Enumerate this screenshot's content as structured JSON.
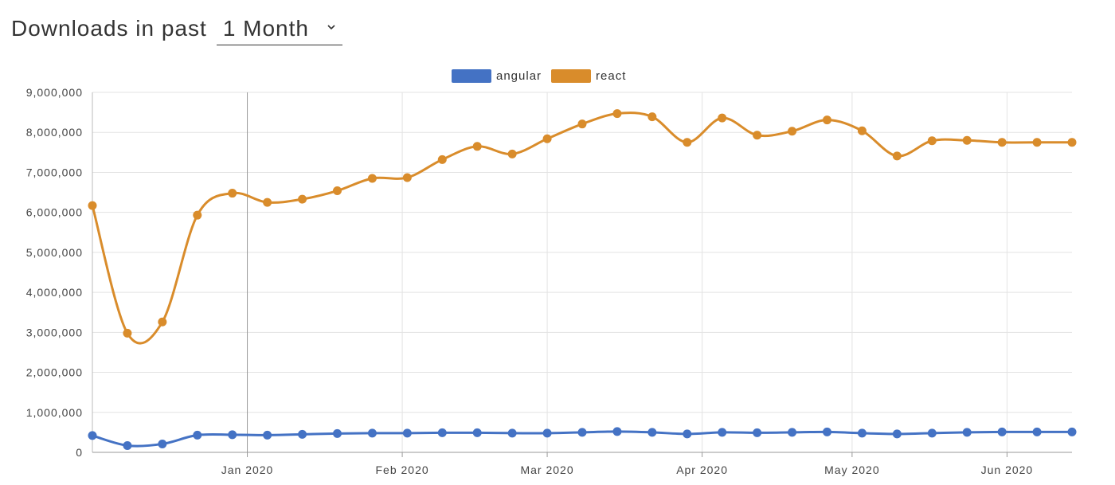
{
  "header": {
    "title": "Downloads in past",
    "range_value": "1 Month"
  },
  "colors": {
    "angular": "#4472C4",
    "react": "#D98C2B",
    "grid": "#e3e3e3",
    "cursor_line": "#999999"
  },
  "chart_data": {
    "type": "line",
    "x": [
      "2019-12-01",
      "2019-12-08",
      "2019-12-15",
      "2019-12-22",
      "2019-12-29",
      "2020-01-05",
      "2020-01-12",
      "2020-01-19",
      "2020-01-26",
      "2020-02-02",
      "2020-02-09",
      "2020-02-16",
      "2020-02-23",
      "2020-03-01",
      "2020-03-08",
      "2020-03-15",
      "2020-03-22",
      "2020-03-29",
      "2020-04-05",
      "2020-04-12",
      "2020-04-19",
      "2020-04-26",
      "2020-05-03",
      "2020-05-10",
      "2020-05-17",
      "2020-05-24",
      "2020-05-31",
      "2020-06-07",
      "2020-06-14"
    ],
    "series": [
      {
        "name": "angular",
        "values": [
          420000,
          170000,
          210000,
          430000,
          440000,
          430000,
          450000,
          470000,
          480000,
          480000,
          490000,
          490000,
          480000,
          480000,
          500000,
          520000,
          500000,
          460000,
          500000,
          490000,
          500000,
          510000,
          480000,
          460000,
          480000,
          500000,
          510000,
          510000,
          510000
        ]
      },
      {
        "name": "react",
        "values": [
          6170000,
          2980000,
          3260000,
          5930000,
          6480000,
          6250000,
          6330000,
          6540000,
          6850000,
          6870000,
          7320000,
          7650000,
          7460000,
          7840000,
          8210000,
          8470000,
          8390000,
          7750000,
          8360000,
          7930000,
          8030000,
          8310000,
          8040000,
          7410000,
          7790000,
          7800000,
          7750000,
          7750000,
          7750000
        ]
      }
    ],
    "y_ticks": [
      "0",
      "1,000,000",
      "2,000,000",
      "3,000,000",
      "4,000,000",
      "5,000,000",
      "6,000,000",
      "7,000,000",
      "8,000,000",
      "9,000,000"
    ],
    "x_ticks": [
      {
        "label": "Jan 2020",
        "date": "2020-01-01"
      },
      {
        "label": "Feb 2020",
        "date": "2020-02-01"
      },
      {
        "label": "Mar 2020",
        "date": "2020-03-01"
      },
      {
        "label": "Apr 2020",
        "date": "2020-04-01"
      },
      {
        "label": "May 2020",
        "date": "2020-05-01"
      },
      {
        "label": "Jun 2020",
        "date": "2020-06-01"
      }
    ],
    "highlighted_date": "2020-01-01",
    "ylim": [
      0,
      9000000
    ],
    "xlim": [
      "2019-12-01",
      "2020-06-14"
    ],
    "grid": true,
    "legend_position": "top-center"
  }
}
